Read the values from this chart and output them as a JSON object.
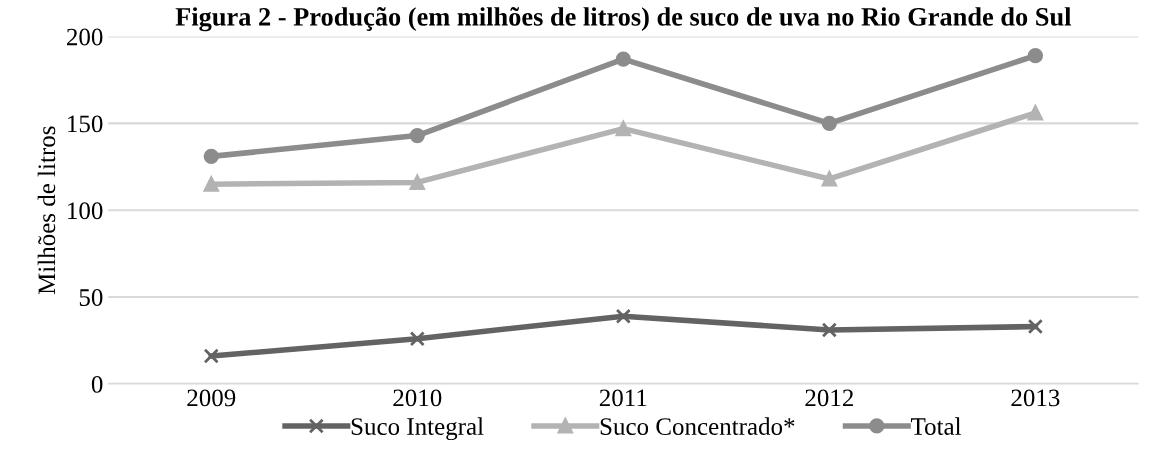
{
  "chart_data": {
    "type": "line",
    "title": "Figura 2 - Produção (em milhões de litros) de suco de uva no Rio Grande do Sul",
    "ylabel": "Milhões de litros",
    "categories": [
      "2009",
      "2010",
      "2011",
      "2012",
      "2013"
    ],
    "series": [
      {
        "name": "Suco Integral",
        "color": "#636363",
        "marker": "cross",
        "values": [
          16,
          26,
          39,
          31,
          33
        ]
      },
      {
        "name": "Suco Concentrado*",
        "color": "#b3b3b3",
        "marker": "triangle",
        "values": [
          115,
          116,
          147,
          118,
          156
        ]
      },
      {
        "name": "Total",
        "color": "#8c8c8c",
        "marker": "circle",
        "values": [
          131,
          143,
          187,
          150,
          189
        ]
      }
    ],
    "ylim": [
      0,
      200
    ],
    "yticks": [
      0,
      50,
      100,
      150,
      200
    ],
    "grid": "y",
    "legend": "bottom",
    "line_style": "solid"
  }
}
